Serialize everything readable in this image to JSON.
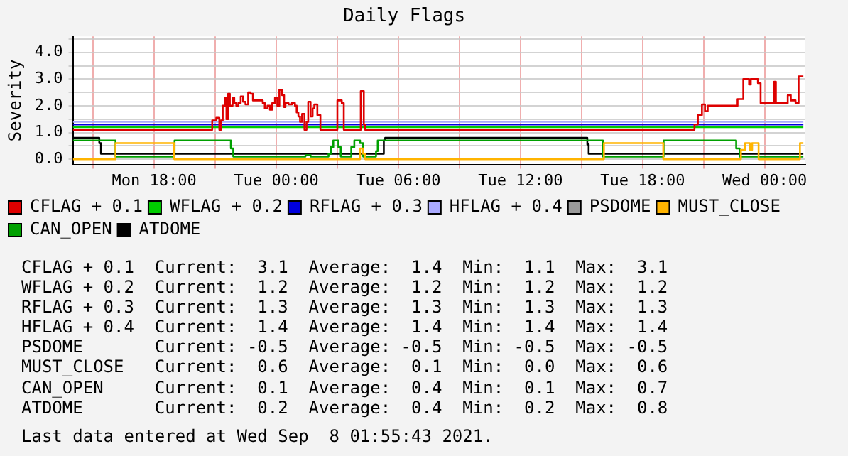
{
  "chart_data": {
    "type": "step",
    "title": "Daily Flags",
    "ylabel": "Severity",
    "xlim": [
      "2021-09-06T14:00",
      "2021-09-08T02:00"
    ],
    "xticks": [
      {
        "value": "2021-09-06T15:00",
        "label": null
      },
      {
        "value": "2021-09-06T18:00",
        "label": "Mon 18:00"
      },
      {
        "value": "2021-09-06T21:00",
        "label": null
      },
      {
        "value": "2021-09-07T00:00",
        "label": "Tue 00:00"
      },
      {
        "value": "2021-09-07T03:00",
        "label": null
      },
      {
        "value": "2021-09-07T06:00",
        "label": "Tue 06:00"
      },
      {
        "value": "2021-09-07T09:00",
        "label": null
      },
      {
        "value": "2021-09-07T12:00",
        "label": "Tue 12:00"
      },
      {
        "value": "2021-09-07T15:00",
        "label": null
      },
      {
        "value": "2021-09-07T18:00",
        "label": "Tue 18:00"
      },
      {
        "value": "2021-09-07T21:00",
        "label": null
      },
      {
        "value": "2021-09-08T00:00",
        "label": "Wed 00:00"
      }
    ],
    "ylim": [
      -0.2,
      4.6
    ],
    "yticks": [
      {
        "value": 0,
        "label": "0.0"
      },
      {
        "value": 0.5,
        "label": null
      },
      {
        "value": 1,
        "label": "1.0"
      },
      {
        "value": 1.5,
        "label": null
      },
      {
        "value": 2,
        "label": "2.0"
      },
      {
        "value": 2.5,
        "label": null
      },
      {
        "value": 3,
        "label": "3.0"
      },
      {
        "value": 3.5,
        "label": null
      },
      {
        "value": 4,
        "label": "4.0"
      },
      {
        "value": 4.5,
        "label": null
      }
    ],
    "grid": true,
    "legend": "bottom",
    "marker": "none",
    "line_style": "solid",
    "series": [
      {
        "name": "CFLAG + 0.1",
        "color": "#dd0000",
        "x": [
          "2021-09-06T14:00",
          "2021-09-06T20:51",
          "2021-09-06T21:03",
          "2021-09-06T21:12",
          "2021-09-06T21:17",
          "2021-09-06T21:22",
          "2021-09-06T21:28",
          "2021-09-06T21:33",
          "2021-09-06T21:38",
          "2021-09-06T21:43",
          "2021-09-06T21:51",
          "2021-09-06T21:56",
          "2021-09-06T22:02",
          "2021-09-06T22:08",
          "2021-09-06T22:15",
          "2021-09-06T22:22",
          "2021-09-06T22:29",
          "2021-09-06T22:37",
          "2021-09-06T22:44",
          "2021-09-06T22:51",
          "2021-09-06T23:20",
          "2021-09-06T23:26",
          "2021-09-06T23:34",
          "2021-09-06T23:41",
          "2021-09-06T23:48",
          "2021-09-06T23:56",
          "2021-09-07T00:03",
          "2021-09-07T00:09",
          "2021-09-07T00:17",
          "2021-09-07T00:23",
          "2021-09-07T00:27",
          "2021-09-07T00:36",
          "2021-09-07T00:46",
          "2021-09-07T00:55",
          "2021-09-07T01:00",
          "2021-09-07T01:05",
          "2021-09-07T01:10",
          "2021-09-07T01:16",
          "2021-09-07T01:23",
          "2021-09-07T01:29",
          "2021-09-07T01:34",
          "2021-09-07T01:41",
          "2021-09-07T01:47",
          "2021-09-07T01:52",
          "2021-09-07T02:01",
          "2021-09-07T02:10",
          "2021-09-07T03:00",
          "2021-09-07T03:13",
          "2021-09-07T03:19",
          "2021-09-07T04:09",
          "2021-09-07T04:18",
          "2021-09-07T04:22",
          "2021-09-07T20:33",
          "2021-09-07T20:43",
          "2021-09-07T20:55",
          "2021-09-07T21:04",
          "2021-09-07T21:12",
          "2021-09-07T22:40",
          "2021-09-07T22:57",
          "2021-09-07T23:14",
          "2021-09-07T23:19",
          "2021-09-07T23:40",
          "2021-09-07T23:48",
          "2021-09-08T00:28",
          "2021-09-08T00:33",
          "2021-09-08T01:08",
          "2021-09-08T01:17",
          "2021-09-08T01:31",
          "2021-09-08T01:40",
          "2021-09-08T01:54"
        ],
        "values": [
          1.1,
          1.45,
          1.55,
          1.1,
          1.45,
          2.0,
          2.3,
          1.5,
          2.45,
          2.0,
          2.3,
          2.1,
          2.0,
          2.1,
          2.35,
          2.15,
          2.05,
          2.5,
          2.45,
          2.2,
          2.1,
          1.9,
          2.0,
          1.85,
          2.1,
          2.3,
          2.0,
          2.6,
          2.4,
          1.95,
          2.1,
          2.05,
          2.1,
          2.0,
          1.75,
          1.6,
          1.4,
          1.7,
          1.1,
          1.4,
          2.15,
          1.6,
          1.9,
          2.05,
          1.65,
          1.1,
          2.2,
          2.1,
          1.1,
          2.55,
          1.3,
          1.1,
          1.3,
          1.65,
          2.05,
          1.8,
          2.0,
          2.25,
          3.0,
          2.8,
          3.0,
          2.85,
          2.1,
          2.9,
          2.1,
          2.4,
          2.2,
          2.1,
          3.1,
          3.1
        ]
      },
      {
        "name": "WFLAG + 0.2",
        "color": "#00cc00",
        "x": [
          "2021-09-06T14:00",
          "2021-09-08T01:54"
        ],
        "values": [
          1.2,
          1.2
        ]
      },
      {
        "name": "RFLAG + 0.3",
        "color": "#0000dd",
        "x": [
          "2021-09-06T14:00",
          "2021-09-08T01:54"
        ],
        "values": [
          1.3,
          1.3
        ]
      },
      {
        "name": "HFLAG + 0.4",
        "color": "#aaaaff",
        "x": [
          "2021-09-06T14:00",
          "2021-09-08T01:54"
        ],
        "values": [
          1.4,
          1.4
        ]
      },
      {
        "name": "PSDOME",
        "color": "#999999"
      },
      {
        "name": "MUST_CLOSE",
        "color": "#ffb400",
        "x": [
          "2021-09-06T14:00",
          "2021-09-06T16:06",
          "2021-09-06T18:59",
          "2021-09-07T04:07",
          "2021-09-07T04:16",
          "2021-09-07T04:22",
          "2021-09-07T16:06",
          "2021-09-07T19:01",
          "2021-09-07T22:50",
          "2021-09-07T23:02",
          "2021-09-07T23:16",
          "2021-09-07T23:23",
          "2021-09-07T23:42",
          "2021-09-08T01:44",
          "2021-09-08T01:54"
        ],
        "values": [
          0.0,
          0.6,
          0.0,
          0.4,
          0.2,
          0.0,
          0.6,
          0.0,
          0.35,
          0.6,
          0.35,
          0.6,
          0.0,
          0.6,
          0.6
        ]
      },
      {
        "name": "CAN_OPEN",
        "color": "#00a000",
        "x": [
          "2021-09-06T14:00",
          "2021-09-06T16:06",
          "2021-09-06T19:00",
          "2021-09-06T21:46",
          "2021-09-06T21:53",
          "2021-09-07T01:26",
          "2021-09-07T01:41",
          "2021-09-07T02:34",
          "2021-09-07T02:41",
          "2021-09-07T02:48",
          "2021-09-07T03:03",
          "2021-09-07T03:10",
          "2021-09-07T03:41",
          "2021-09-07T03:50",
          "2021-09-07T04:07",
          "2021-09-07T04:16",
          "2021-09-07T04:54",
          "2021-09-07T04:59",
          "2021-09-07T16:03",
          "2021-09-07T19:02",
          "2021-09-07T22:36",
          "2021-09-07T22:46",
          "2021-09-08T01:54"
        ],
        "values": [
          0.7,
          0.1,
          0.7,
          0.4,
          0.1,
          0.15,
          0.1,
          0.2,
          0.45,
          0.7,
          0.45,
          0.1,
          0.45,
          0.7,
          0.6,
          0.1,
          0.3,
          0.7,
          0.1,
          0.7,
          0.4,
          0.1,
          0.1
        ]
      },
      {
        "name": "ATDOME",
        "color": "#000000",
        "x": [
          "2021-09-06T14:00",
          "2021-09-06T15:18",
          "2021-09-06T15:23",
          "2021-09-07T05:17",
          "2021-09-07T05:21",
          "2021-09-07T15:17",
          "2021-09-07T15:21",
          "2021-09-08T01:54"
        ],
        "values": [
          0.8,
          0.6,
          0.2,
          0.7,
          0.8,
          0.55,
          0.2,
          0.2
        ]
      }
    ],
    "annotations": [
      "CFLAG + 0.1  Current:  3.1  Average:  1.4  Min:  1.1  Max:  3.1",
      "WFLAG + 0.2  Current:  1.2  Average:  1.2  Min:  1.2  Max:  1.2",
      "RFLAG + 0.3  Current:  1.3  Average:  1.3  Min:  1.3  Max:  1.3",
      "HFLAG + 0.4  Current:  1.4  Average:  1.4  Min:  1.4  Max:  1.4",
      "PSDOME       Current: -0.5  Average: -0.5  Min: -0.5  Max: -0.5",
      "MUST_CLOSE   Current:  0.6  Average:  0.1  Min:  0.0  Max:  0.6",
      "CAN_OPEN     Current:  0.1  Average:  0.4  Min:  0.1  Max:  0.7",
      "ATDOME       Current:  0.2  Average:  0.4  Min:  0.2  Max:  0.8",
      "Last data entered at Wed Sep  8 01:55:43 2021."
    ]
  }
}
